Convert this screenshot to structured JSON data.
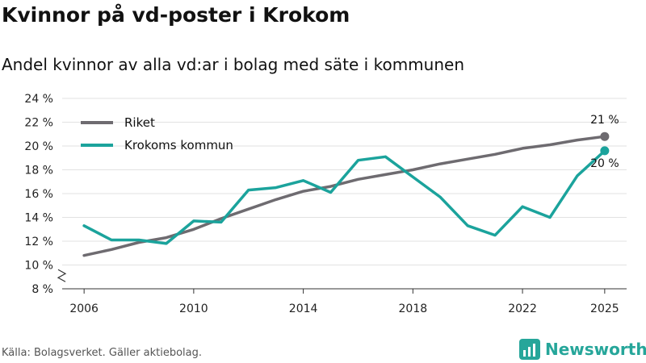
{
  "title": "Kvinnor på vd-poster i Krokom",
  "subtitle": "Andel kvinnor av alla vd:ar i bolag med säte i kommunen",
  "source": "Källa: Bolagsverket. Gäller aktiebolag.",
  "brand": "Newsworthy",
  "colors": {
    "riket": "#6e6b70",
    "krokom": "#1ba39c",
    "grid": "#e2e2e2"
  },
  "chart_data": {
    "type": "line",
    "ylim": [
      8,
      24
    ],
    "yticks": [
      8,
      10,
      12,
      14,
      16,
      18,
      20,
      22,
      24
    ],
    "yticklabels": [
      "8 %",
      "10 %",
      "12 %",
      "14 %",
      "16 %",
      "18 %",
      "20 %",
      "22 %",
      "24 %"
    ],
    "xlim": [
      2005.2,
      2025.8
    ],
    "xticks": [
      2006,
      2010,
      2014,
      2018,
      2022,
      2025
    ],
    "xticklabels": [
      "2006",
      "2010",
      "2014",
      "2018",
      "2022",
      "2025"
    ],
    "series": [
      {
        "name": "Riket",
        "key": "riket",
        "x": [
          2006,
          2007,
          2008,
          2009,
          2010,
          2011,
          2012,
          2013,
          2014,
          2015,
          2016,
          2017,
          2018,
          2019,
          2020,
          2021,
          2022,
          2023,
          2024,
          2025
        ],
        "values": [
          10.8,
          11.3,
          11.9,
          12.3,
          13.0,
          13.9,
          14.7,
          15.5,
          16.2,
          16.6,
          17.2,
          17.6,
          18.0,
          18.5,
          18.9,
          19.3,
          19.8,
          20.1,
          20.5,
          20.8
        ],
        "end_label": "21 %"
      },
      {
        "name": "Krokoms kommun",
        "key": "krokom",
        "x": [
          2006,
          2007,
          2008,
          2009,
          2010,
          2011,
          2012,
          2013,
          2014,
          2015,
          2016,
          2017,
          2018,
          2019,
          2020,
          2021,
          2022,
          2023,
          2024,
          2025
        ],
        "values": [
          13.3,
          12.1,
          12.1,
          11.8,
          13.7,
          13.6,
          16.3,
          16.5,
          17.1,
          16.1,
          18.8,
          19.1,
          17.4,
          15.7,
          13.3,
          12.5,
          14.9,
          14.0,
          17.5,
          19.6
        ],
        "end_label": "20 %"
      }
    ]
  }
}
